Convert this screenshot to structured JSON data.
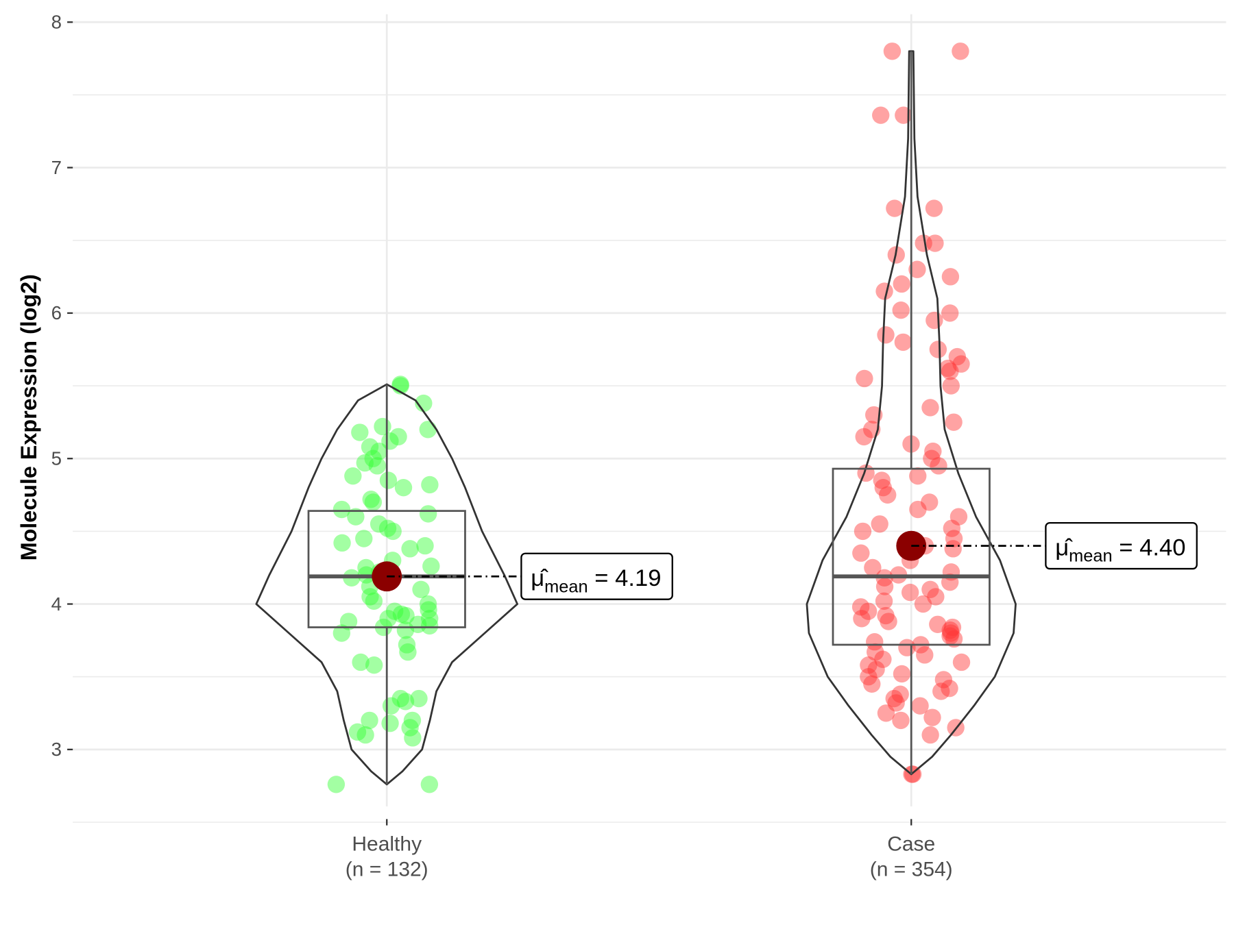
{
  "chart_data": {
    "type": "violin",
    "ylabel": "Molecule Expression (log2)",
    "xlabel": "",
    "ylim": [
      2.5,
      8.05
    ],
    "yticks": [
      "3",
      "4",
      "5",
      "6",
      "7",
      "8"
    ],
    "grid": true,
    "groups": [
      {
        "name": "Healthy",
        "n_label": "(n = 132)",
        "color": "#33ff33",
        "stats": {
          "min": 2.76,
          "q1": 3.84,
          "median": 4.19,
          "q3": 4.64,
          "max": 5.51,
          "mean": 4.19
        },
        "mean_label": "4.19",
        "density": [
          [
            2.76,
            0
          ],
          [
            2.85,
            0.12
          ],
          [
            3.0,
            0.27
          ],
          [
            3.2,
            0.33
          ],
          [
            3.4,
            0.38
          ],
          [
            3.6,
            0.5
          ],
          [
            3.8,
            0.75
          ],
          [
            4.0,
            1.0
          ],
          [
            4.2,
            0.9
          ],
          [
            4.5,
            0.73
          ],
          [
            4.8,
            0.6
          ],
          [
            5.0,
            0.5
          ],
          [
            5.2,
            0.38
          ],
          [
            5.4,
            0.22
          ],
          [
            5.51,
            0
          ]
        ],
        "points": [
          2.76,
          2.76,
          3.1,
          3.12,
          3.15,
          3.18,
          3.2,
          3.2,
          3.08,
          3.3,
          3.33,
          3.35,
          3.35,
          3.6,
          3.58,
          3.67,
          3.72,
          3.8,
          3.82,
          3.84,
          3.85,
          3.86,
          3.88,
          3.9,
          3.9,
          3.92,
          3.93,
          3.95,
          3.96,
          4.0,
          4.02,
          4.05,
          4.1,
          4.12,
          4.18,
          4.2,
          4.22,
          4.25,
          4.26,
          4.3,
          4.38,
          4.4,
          4.42,
          4.45,
          4.5,
          4.52,
          4.55,
          4.6,
          4.62,
          4.65,
          4.7,
          4.72,
          4.8,
          4.82,
          4.85,
          4.88,
          4.95,
          4.97,
          5.0,
          5.05,
          5.08,
          5.12,
          5.15,
          5.18,
          5.2,
          5.22,
          5.38,
          5.5,
          5.51
        ]
      },
      {
        "name": "Case",
        "n_label": "(n = 354)",
        "color": "#ff3333",
        "stats": {
          "min": 2.83,
          "q1": 3.72,
          "median": 4.19,
          "q3": 4.93,
          "max": 7.8,
          "mean": 4.4
        },
        "mean_label": "4.40",
        "density": [
          [
            2.83,
            0
          ],
          [
            2.95,
            0.2
          ],
          [
            3.1,
            0.38
          ],
          [
            3.3,
            0.6
          ],
          [
            3.5,
            0.8
          ],
          [
            3.8,
            0.98
          ],
          [
            4.0,
            1.0
          ],
          [
            4.3,
            0.85
          ],
          [
            4.6,
            0.62
          ],
          [
            4.9,
            0.45
          ],
          [
            5.2,
            0.32
          ],
          [
            5.5,
            0.28
          ],
          [
            5.8,
            0.27
          ],
          [
            6.1,
            0.25
          ],
          [
            6.4,
            0.15
          ],
          [
            6.8,
            0.06
          ],
          [
            7.2,
            0.03
          ],
          [
            7.8,
            0.02
          ]
        ],
        "points": [
          2.83,
          2.83,
          3.1,
          3.15,
          3.2,
          3.22,
          3.25,
          3.3,
          3.32,
          3.35,
          3.38,
          3.4,
          3.42,
          3.45,
          3.48,
          3.5,
          3.52,
          3.55,
          3.58,
          3.6,
          3.62,
          3.65,
          3.67,
          3.7,
          3.72,
          3.74,
          3.76,
          3.78,
          3.8,
          3.82,
          3.84,
          3.86,
          3.88,
          3.9,
          3.92,
          3.95,
          3.98,
          4.0,
          4.02,
          4.05,
          4.08,
          4.1,
          4.12,
          4.15,
          4.18,
          4.2,
          4.22,
          4.25,
          4.3,
          4.35,
          4.38,
          4.4,
          4.45,
          4.5,
          4.52,
          4.55,
          4.6,
          4.65,
          4.7,
          4.75,
          4.8,
          4.85,
          4.88,
          4.9,
          4.95,
          5.0,
          5.05,
          5.1,
          5.15,
          5.2,
          5.25,
          5.3,
          5.35,
          5.5,
          5.55,
          5.6,
          5.62,
          5.65,
          5.7,
          5.75,
          5.8,
          5.85,
          5.95,
          6.0,
          6.02,
          6.15,
          6.2,
          6.25,
          6.3,
          6.4,
          6.48,
          6.48,
          6.72,
          6.72,
          7.36,
          7.36,
          7.8,
          7.8
        ]
      }
    ]
  }
}
